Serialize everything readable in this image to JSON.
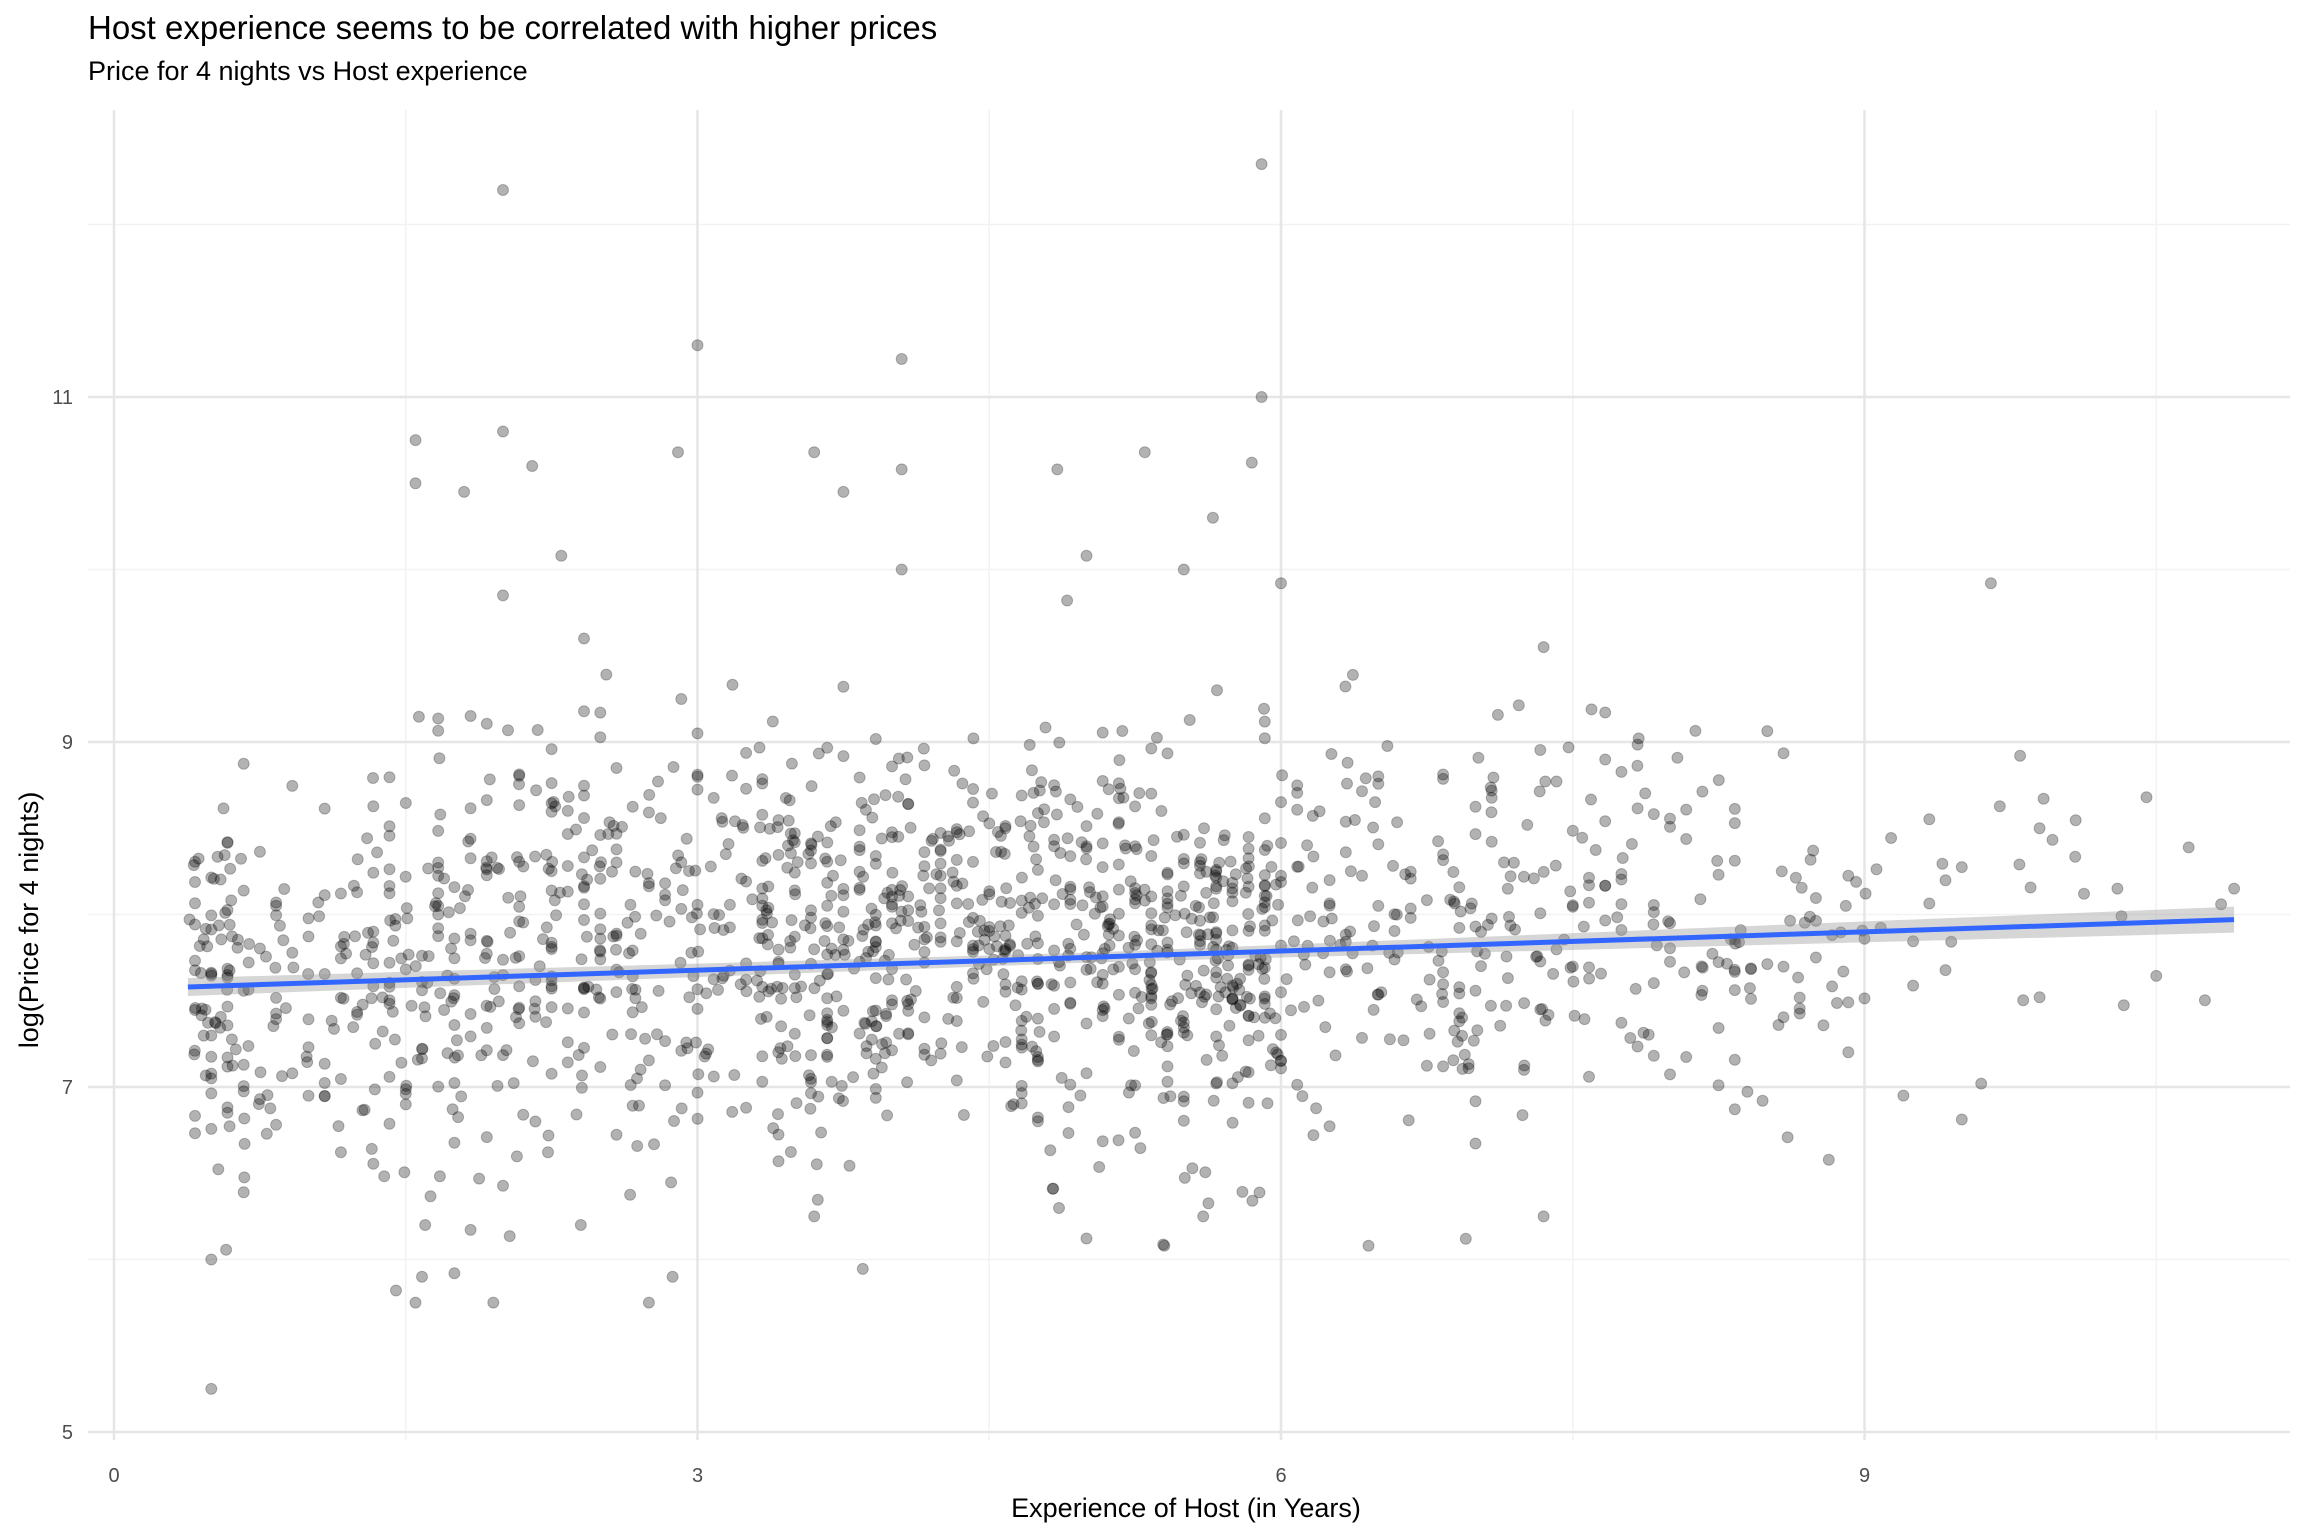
{
  "chart_data": {
    "type": "scatter",
    "title": "Host experience seems to be correlated with higher prices",
    "subtitle": "Price for 4 nights vs Host experience",
    "xlabel": "Experience of Host (in Years)",
    "ylabel": "log(Price for 4 nights)",
    "xlim": [
      0,
      11.7
    ],
    "ylim": [
      4.97,
      12.4
    ],
    "x_ticks": [
      0,
      3,
      6,
      9
    ],
    "y_ticks": [
      5,
      7,
      9,
      11
    ],
    "x_ticks_minor": [
      1.5,
      4.5,
      7.5,
      10.5
    ],
    "y_ticks_minor": [
      6,
      8,
      10,
      12
    ],
    "grid": true,
    "point_color": "#000000",
    "point_opacity": 0.3,
    "trend_line": {
      "x": [
        0.38,
        10.9
      ],
      "y": [
        7.58,
        7.97
      ],
      "color": "#3366FF",
      "band_color": "#999999"
    },
    "clusters": [
      {
        "x": [
          0.38,
          0.7
        ],
        "y_mean": 7.5,
        "y_sd": 0.55,
        "n": 90
      },
      {
        "x": [
          0.7,
          1.3
        ],
        "y_mean": 7.55,
        "y_sd": 0.55,
        "n": 70
      },
      {
        "x": [
          1.3,
          2.0
        ],
        "y_mean": 7.75,
        "y_sd": 0.6,
        "n": 150
      },
      {
        "x": [
          2.0,
          2.6
        ],
        "y_mean": 7.8,
        "y_sd": 0.65,
        "n": 130
      },
      {
        "x": [
          2.6,
          3.3
        ],
        "y_mean": 7.9,
        "y_sd": 0.6,
        "n": 120
      },
      {
        "x": [
          3.3,
          4.0
        ],
        "y_mean": 7.8,
        "y_sd": 0.65,
        "n": 220
      },
      {
        "x": [
          4.0,
          4.6
        ],
        "y_mean": 7.95,
        "y_sd": 0.5,
        "n": 140
      },
      {
        "x": [
          4.6,
          5.3
        ],
        "y_mean": 7.85,
        "y_sd": 0.55,
        "n": 200
      },
      {
        "x": [
          5.3,
          6.0
        ],
        "y_mean": 7.7,
        "y_sd": 0.55,
        "n": 230
      },
      {
        "x": [
          6.0,
          7.0
        ],
        "y_mean": 7.95,
        "y_sd": 0.55,
        "n": 140
      },
      {
        "x": [
          7.0,
          8.0
        ],
        "y_mean": 7.95,
        "y_sd": 0.6,
        "n": 110
      },
      {
        "x": [
          8.0,
          9.0
        ],
        "y_mean": 7.9,
        "y_sd": 0.55,
        "n": 80
      },
      {
        "x": [
          9.0,
          10.9
        ],
        "y_mean": 8.0,
        "y_sd": 0.5,
        "n": 30
      }
    ],
    "outliers": [
      {
        "x": 2.0,
        "y": 12.2
      },
      {
        "x": 5.9,
        "y": 12.35
      },
      {
        "x": 3.0,
        "y": 11.3
      },
      {
        "x": 4.05,
        "y": 11.22
      },
      {
        "x": 5.9,
        "y": 11.0
      },
      {
        "x": 1.55,
        "y": 10.75
      },
      {
        "x": 1.55,
        "y": 10.5
      },
      {
        "x": 2.0,
        "y": 10.8
      },
      {
        "x": 2.15,
        "y": 10.6
      },
      {
        "x": 1.8,
        "y": 10.45
      },
      {
        "x": 2.9,
        "y": 10.68
      },
      {
        "x": 3.6,
        "y": 10.68
      },
      {
        "x": 3.75,
        "y": 10.45
      },
      {
        "x": 4.05,
        "y": 10.58
      },
      {
        "x": 4.85,
        "y": 10.58
      },
      {
        "x": 5.3,
        "y": 10.68
      },
      {
        "x": 5.85,
        "y": 10.62
      },
      {
        "x": 5.65,
        "y": 10.3
      },
      {
        "x": 2.3,
        "y": 10.08
      },
      {
        "x": 4.05,
        "y": 10.0
      },
      {
        "x": 5.0,
        "y": 10.08
      },
      {
        "x": 5.5,
        "y": 10.0
      },
      {
        "x": 2.0,
        "y": 9.85
      },
      {
        "x": 4.9,
        "y": 9.82
      },
      {
        "x": 6.0,
        "y": 9.92
      },
      {
        "x": 9.65,
        "y": 9.92
      },
      {
        "x": 0.5,
        "y": 5.25
      },
      {
        "x": 0.5,
        "y": 6.0
      },
      {
        "x": 1.45,
        "y": 5.82
      },
      {
        "x": 1.55,
        "y": 5.75
      },
      {
        "x": 1.95,
        "y": 5.75
      },
      {
        "x": 2.75,
        "y": 5.75
      },
      {
        "x": 1.75,
        "y": 5.92
      },
      {
        "x": 5.4,
        "y": 6.08
      },
      {
        "x": 6.45,
        "y": 6.08
      },
      {
        "x": 5.6,
        "y": 6.25
      },
      {
        "x": 6.95,
        "y": 6.12
      },
      {
        "x": 7.35,
        "y": 6.25
      },
      {
        "x": 1.6,
        "y": 6.2
      },
      {
        "x": 2.4,
        "y": 6.2
      },
      {
        "x": 3.6,
        "y": 6.25
      },
      {
        "x": 7.35,
        "y": 9.55
      },
      {
        "x": 9.8,
        "y": 8.92
      },
      {
        "x": 10.45,
        "y": 8.68
      },
      {
        "x": 10.9,
        "y": 8.15
      },
      {
        "x": 10.3,
        "y": 8.15
      },
      {
        "x": 9.9,
        "y": 7.52
      },
      {
        "x": 9.2,
        "y": 6.95
      },
      {
        "x": 9.6,
        "y": 7.02
      },
      {
        "x": 9.9,
        "y": 8.5
      }
    ]
  }
}
